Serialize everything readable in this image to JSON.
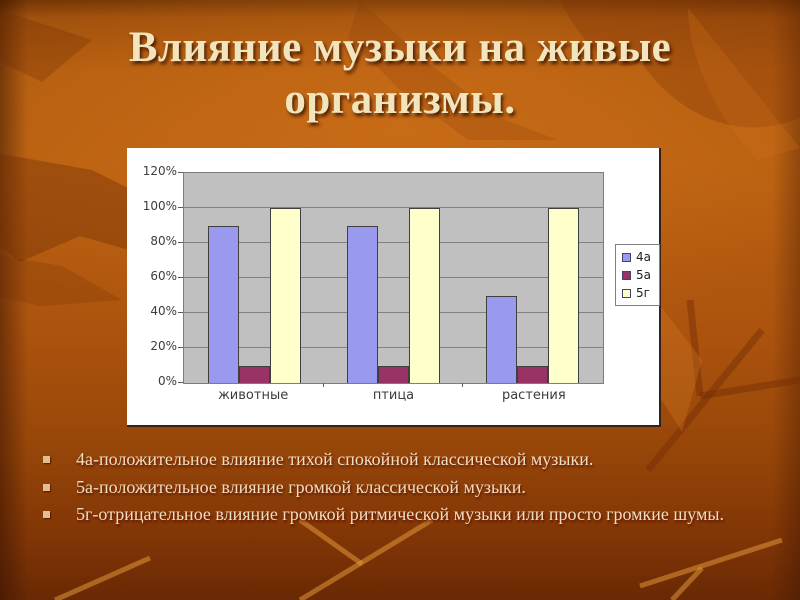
{
  "slide": {
    "title_lines": [
      "Влияние музыки на живые",
      "организмы."
    ],
    "bullets": [
      "4а-положительное влияние тихой спокойной классической музыки.",
      "5а-положительное влияние громкой классической музыки.",
      "5г-отрицательное влияние громкой ритмической музыки или просто громкие шумы."
    ]
  },
  "chart_data": {
    "type": "bar",
    "title": "",
    "categories": [
      "животные",
      "птица",
      "растения"
    ],
    "series": [
      {
        "name": "4а",
        "color": "#9999EE",
        "values": [
          90,
          90,
          50
        ]
      },
      {
        "name": "5а",
        "color": "#993366",
        "values": [
          10,
          10,
          10
        ]
      },
      {
        "name": "5г",
        "color": "#FFFFCC",
        "values": [
          100,
          100,
          100
        ]
      }
    ],
    "y_ticks": [
      "0%",
      "20%",
      "40%",
      "60%",
      "80%",
      "100%",
      "120%"
    ],
    "ylim": [
      0,
      120
    ],
    "grid": true,
    "legend_position": "right",
    "plot_bg": "#C0C0C0",
    "gridline_color": "#808080",
    "bar_border_color": "#3F3F3F"
  },
  "colors": {
    "title_text": "#F2E4BC",
    "bullet_text": "#F0DEC0",
    "chart_bg": "#FFFFFF"
  }
}
